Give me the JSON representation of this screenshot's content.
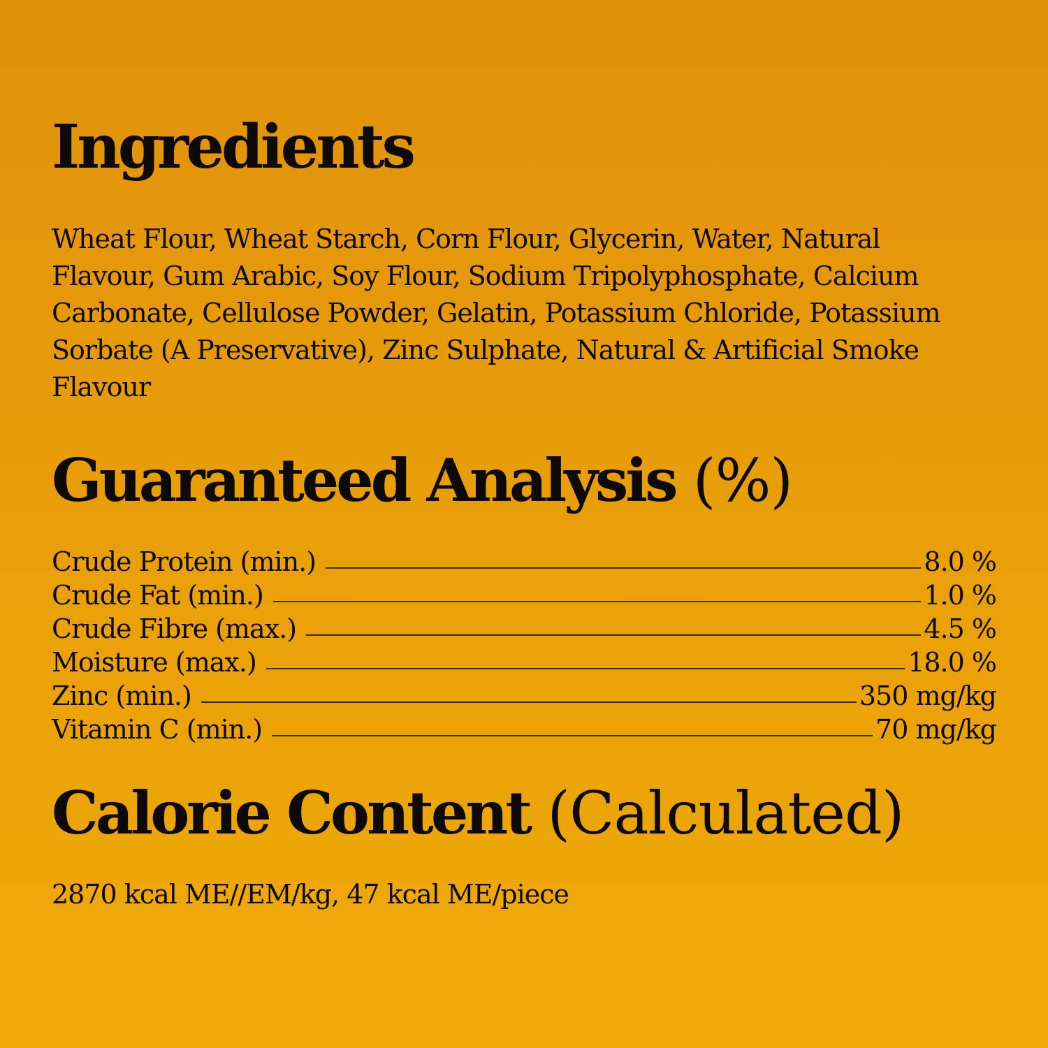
{
  "ingredients": {
    "title": "Ingredients",
    "lines": [
      "Wheat Flour, Wheat Starch, Corn Flour, Glycerin, Water, Natural",
      "Flavour, Gum Arabic, Soy Flour, Sodium Tripolyphosphate, Calcium",
      "Carbonate, Cellulose Powder, Gelatin, Potassium Chloride, Potassium",
      "Sorbate (A Preservative), Zinc Sulphate, Natural & Artificial Smoke",
      "Flavour"
    ]
  },
  "analysis": {
    "title": "Guaranteed Analysis",
    "title_suffix": "(%)",
    "rows": [
      {
        "label": "Crude Protein (min.)",
        "value": "8.0 %"
      },
      {
        "label": "Crude Fat (min.)",
        "value": "1.0 %"
      },
      {
        "label": "Crude Fibre (max.)",
        "value": "4.5 %"
      },
      {
        "label": "Moisture (max.)",
        "value": "18.0 %"
      },
      {
        "label": "Zinc (min.)",
        "value": "350 mg/kg"
      },
      {
        "label": "Vitamin C (min.)",
        "value": "70 mg/kg"
      }
    ]
  },
  "calorie": {
    "title": "Calorie Content",
    "title_suffix": "(Calculated)",
    "text": "2870 kcal ME//EM/kg, 47 kcal ME/piece"
  },
  "colors": {
    "background_top": "#e0910b",
    "background_bottom": "#f0aa07",
    "text": "#0d0a05"
  }
}
